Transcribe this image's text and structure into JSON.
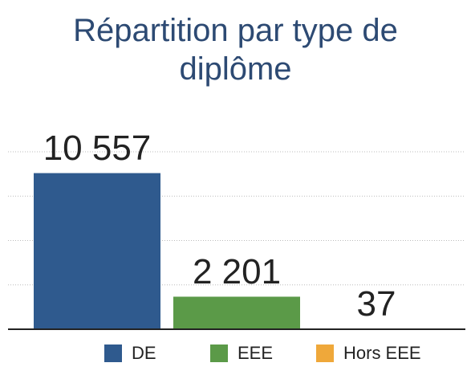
{
  "chart_data": {
    "type": "bar",
    "title": "Répartition par type de diplôme",
    "categories": [
      "DE",
      "EEE",
      "Hors EEE"
    ],
    "values": [
      10557,
      2201,
      37
    ],
    "value_labels": [
      "10 557",
      "2 201",
      "37"
    ],
    "colors": [
      "#2f5a8e",
      "#5b9a48",
      "#efa83a"
    ],
    "ylim": [
      0,
      12000
    ],
    "yticks": [
      0,
      3000,
      6000,
      9000,
      12000
    ],
    "grid": true,
    "legend": "bottom"
  }
}
